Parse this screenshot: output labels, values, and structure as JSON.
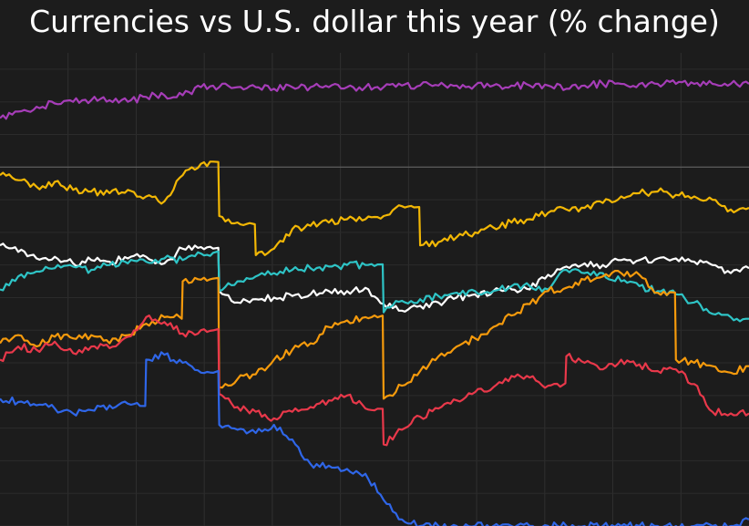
{
  "chart_data": {
    "type": "line",
    "title": "Currencies vs U.S. dollar this year (% change)",
    "xlabel": "",
    "ylabel": "",
    "ylim": [
      -22,
      7
    ],
    "grid": true,
    "legend": "none",
    "reference_line": 0,
    "x": [
      0,
      1,
      2,
      3,
      4,
      5,
      6,
      7,
      8,
      9,
      10,
      11,
      12,
      13,
      14,
      15,
      16,
      17,
      18,
      19,
      20,
      21,
      22,
      23,
      24,
      25,
      26,
      27,
      28,
      29,
      30,
      31,
      32,
      33,
      34,
      35,
      36,
      37,
      38,
      39,
      40,
      41
    ],
    "series": [
      {
        "name": "purple",
        "color": "#a63db8",
        "values": [
          3.0,
          3.4,
          3.7,
          3.9,
          4.0,
          4.1,
          4.1,
          4.0,
          4.3,
          4.4,
          4.4,
          4.9,
          4.9,
          4.9,
          4.9,
          4.8,
          4.9,
          4.9,
          4.9,
          4.9,
          4.9,
          4.9,
          5.0,
          5.0,
          5.0,
          5.0,
          5.0,
          5.0,
          5.0,
          5.0,
          5.0,
          4.8,
          5.0,
          5.1,
          5.1,
          5.1,
          5.1,
          5.1,
          5.1,
          5.1,
          5.1,
          5.1
        ]
      },
      {
        "name": "yellow",
        "color": "#f2b705",
        "values": [
          -0.5,
          -0.8,
          -1.2,
          -0.9,
          -1.4,
          -1.5,
          -1.6,
          -1.4,
          -1.8,
          -2.1,
          -0.5,
          0.2,
          -3.0,
          -3.4,
          -5.4,
          -5.0,
          -3.8,
          -3.6,
          -3.4,
          -3.2,
          -3.2,
          -3.0,
          -2.4,
          -4.8,
          -4.6,
          -4.3,
          -4.0,
          -3.7,
          -3.4,
          -3.2,
          -2.8,
          -2.6,
          -2.5,
          -2.2,
          -1.8,
          -1.6,
          -1.5,
          -1.7,
          -1.8,
          -2.0,
          -2.6,
          -2.5
        ]
      },
      {
        "name": "white",
        "color": "#ffffff",
        "values": [
          -4.8,
          -5.2,
          -5.6,
          -5.5,
          -5.9,
          -5.7,
          -5.8,
          -5.6,
          -5.5,
          -5.9,
          -5.0,
          -4.9,
          -7.6,
          -8.3,
          -8.1,
          -8.0,
          -7.9,
          -7.8,
          -7.6,
          -7.6,
          -7.4,
          -8.4,
          -8.8,
          -8.5,
          -8.3,
          -8.0,
          -7.8,
          -7.6,
          -7.5,
          -7.5,
          -6.6,
          -6.1,
          -5.9,
          -6.0,
          -5.7,
          -5.7,
          -5.6,
          -5.6,
          -5.8,
          -6.0,
          -6.5,
          -6.2
        ]
      },
      {
        "name": "cyan",
        "color": "#2ec4c6",
        "values": [
          -7.5,
          -6.7,
          -6.4,
          -6.2,
          -6.1,
          -6.3,
          -6.0,
          -5.9,
          -5.8,
          -5.6,
          -5.7,
          -5.3,
          -7.6,
          -7.0,
          -6.7,
          -6.5,
          -6.3,
          -6.2,
          -6.1,
          -6.0,
          -6.0,
          -8.9,
          -8.2,
          -8.1,
          -7.9,
          -7.7,
          -7.6,
          -7.6,
          -7.3,
          -7.3,
          -7.5,
          -6.3,
          -6.5,
          -6.5,
          -7.0,
          -7.3,
          -7.6,
          -7.8,
          -8.3,
          -9.0,
          -9.2,
          -9.3
        ]
      },
      {
        "name": "orange",
        "color": "#f59a0c",
        "values": [
          -10.8,
          -10.3,
          -11.0,
          -10.4,
          -10.5,
          -10.3,
          -10.8,
          -10.3,
          -9.6,
          -9.2,
          -7.0,
          -6.9,
          -13.5,
          -13.0,
          -12.7,
          -11.8,
          -11.2,
          -10.8,
          -9.8,
          -9.4,
          -9.2,
          -14.2,
          -13.4,
          -12.5,
          -11.6,
          -11.0,
          -10.5,
          -9.8,
          -9.1,
          -8.4,
          -7.6,
          -7.4,
          -6.9,
          -6.7,
          -6.5,
          -6.6,
          -7.7,
          -11.8,
          -12.0,
          -12.2,
          -12.6,
          -12.2
        ]
      },
      {
        "name": "red",
        "color": "#e8384a",
        "values": [
          -11.8,
          -11.0,
          -11.2,
          -10.7,
          -11.4,
          -11.0,
          -11.1,
          -10.4,
          -9.2,
          -9.5,
          -10.2,
          -10.0,
          -13.9,
          -14.7,
          -15.0,
          -15.4,
          -15.0,
          -14.7,
          -14.3,
          -14.0,
          -14.8,
          -17.0,
          -16.1,
          -15.3,
          -14.8,
          -14.3,
          -13.8,
          -13.5,
          -12.8,
          -12.9,
          -13.4,
          -11.6,
          -12.0,
          -12.4,
          -11.8,
          -12.1,
          -12.5,
          -12.4,
          -13.3,
          -15.0,
          -15.1,
          -15.1
        ]
      },
      {
        "name": "blue",
        "color": "#2f66e8",
        "values": [
          -14.2,
          -14.4,
          -14.6,
          -14.8,
          -15.1,
          -14.9,
          -14.6,
          -14.5,
          -11.8,
          -11.5,
          -12.0,
          -12.6,
          -15.8,
          -16.1,
          -16.3,
          -15.8,
          -16.7,
          -18.2,
          -18.3,
          -18.5,
          -18.8,
          -20.4,
          -21.6,
          -22.0,
          -22.0,
          -22.0,
          -22.0,
          -22.0,
          -22.0,
          -22.0,
          -22.0,
          -22.0,
          -22.0,
          -22.0,
          -22.0,
          -22.0,
          -22.0,
          -22.0,
          -22.0,
          -22.0,
          -22.0,
          -21.6
        ]
      }
    ]
  }
}
